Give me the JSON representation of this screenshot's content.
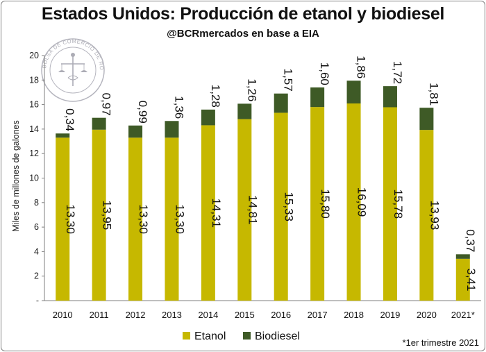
{
  "header": {
    "title": "Estados Unidos: Producción de etanol y biodiesel",
    "subtitle": "@BCRmercados en base a EIA"
  },
  "logo": {
    "text": "BOLSA DE COMERCIO DE ROSARIO"
  },
  "footnote": "*1er trimestre  2021",
  "colors": {
    "etanol": "#c6b800",
    "biodiesel": "#3e5a26",
    "axis": "#7f7f7f"
  },
  "chart_data": {
    "type": "bar",
    "stacked": true,
    "title": "Estados Unidos: Producción de etanol y biodiesel",
    "subtitle": "@BCRmercados en base a EIA",
    "xlabel": "",
    "ylabel": "Miles de millones de galones",
    "ylim": [
      0,
      20
    ],
    "yticks": [
      0,
      2,
      4,
      6,
      8,
      10,
      12,
      14,
      16,
      18,
      20
    ],
    "ytick_labels": [
      "-",
      "2",
      "4",
      "6",
      "8",
      "10",
      "12",
      "14",
      "16",
      "18",
      "20"
    ],
    "categories": [
      "2010",
      "2011",
      "2012",
      "2013",
      "2014",
      "2015",
      "2016",
      "2017",
      "2018",
      "2019",
      "2020",
      "2021*"
    ],
    "series": [
      {
        "name": "Etanol",
        "values": [
          13.3,
          13.95,
          13.3,
          13.3,
          14.31,
          14.81,
          15.33,
          15.8,
          16.09,
          15.78,
          13.93,
          3.41
        ],
        "labels": [
          "13,30",
          "13,95",
          "13,30",
          "13,30",
          "14,31",
          "14,81",
          "15,33",
          "15,80",
          "16,09",
          "15,78",
          "13,93",
          "3,41"
        ]
      },
      {
        "name": "Biodiesel",
        "values": [
          0.34,
          0.97,
          0.99,
          1.36,
          1.28,
          1.26,
          1.57,
          1.6,
          1.86,
          1.72,
          1.81,
          0.37
        ],
        "labels": [
          "0,34",
          "0,97",
          "0,99",
          "1,36",
          "1,28",
          "1,26",
          "1,57",
          "1,60",
          "1,86",
          "1,72",
          "1,81",
          "0,37"
        ]
      }
    ],
    "legend": [
      "Etanol",
      "Biodiesel"
    ],
    "legend_position": "bottom",
    "grid": false
  }
}
